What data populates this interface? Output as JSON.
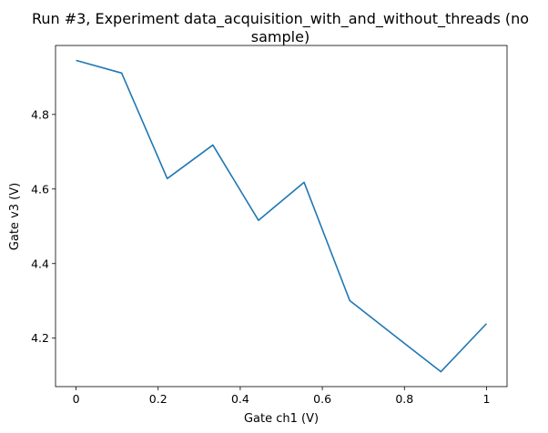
{
  "chart_data": {
    "type": "line",
    "title_lines": [
      "Run #3, Experiment data_acquisition_with_and_without_threads (no",
      "sample)"
    ],
    "xlabel": "Gate ch1 (V)",
    "ylabel": "Gate v3 (V)",
    "xlim": [
      -0.05,
      1.05
    ],
    "ylim": [
      4.07,
      4.985
    ],
    "xticks": [
      0,
      0.2,
      0.4,
      0.6,
      0.8,
      1
    ],
    "xtick_labels": [
      "0",
      "0.2",
      "0.4",
      "0.6",
      "0.8",
      "1"
    ],
    "yticks": [
      4.2,
      4.4,
      4.6,
      4.8
    ],
    "ytick_labels": [
      "4.2",
      "4.4",
      "4.6",
      "4.8"
    ],
    "grid": false,
    "series": [
      {
        "color": "#1f77b4",
        "x": [
          0,
          0.1111,
          0.2222,
          0.3333,
          0.4444,
          0.5556,
          0.6667,
          0.7778,
          0.8889,
          1.0
        ],
        "y": [
          4.945,
          4.911,
          4.628,
          4.718,
          4.516,
          4.618,
          4.301,
          4.205,
          4.11,
          4.239
        ]
      }
    ]
  }
}
